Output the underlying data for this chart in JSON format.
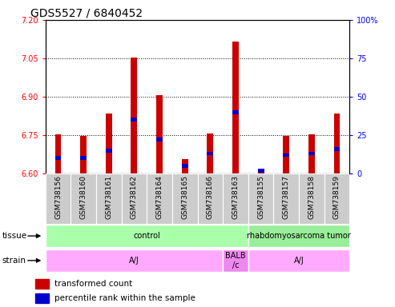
{
  "title": "GDS5527 / 6840452",
  "samples": [
    "GSM738156",
    "GSM738160",
    "GSM738161",
    "GSM738162",
    "GSM738164",
    "GSM738165",
    "GSM738166",
    "GSM738163",
    "GSM738155",
    "GSM738157",
    "GSM738158",
    "GSM738159"
  ],
  "red_values": [
    6.752,
    6.748,
    6.835,
    7.052,
    6.905,
    6.655,
    6.755,
    7.115,
    6.615,
    6.748,
    6.752,
    6.835
  ],
  "blue_values_pct": [
    10,
    10,
    15,
    35,
    22,
    5,
    13,
    40,
    2,
    12,
    13,
    16
  ],
  "ylim_left": [
    6.6,
    7.2
  ],
  "ylim_right": [
    0,
    100
  ],
  "yticks_left": [
    6.6,
    6.75,
    6.9,
    7.05,
    7.2
  ],
  "yticks_right": [
    0,
    25,
    50,
    75,
    100
  ],
  "grid_vals": [
    6.75,
    6.9,
    7.05
  ],
  "baseline": 6.6,
  "red_color": "#cc0000",
  "blue_color": "#0000cc",
  "tissue_labels": [
    "control",
    "rhabdomyosarcoma tumor"
  ],
  "tissue_colors": [
    "#aaffaa",
    "#99ee99"
  ],
  "tissue_ranges": [
    [
      0,
      8
    ],
    [
      8,
      12
    ]
  ],
  "strain_labels": [
    "A/J",
    "BALB\n/c",
    "A/J"
  ],
  "strain_colors": [
    "#ffaaff",
    "#ee88ee",
    "#ffaaff"
  ],
  "strain_ranges": [
    [
      0,
      7
    ],
    [
      7,
      8
    ],
    [
      8,
      12
    ]
  ],
  "legend_red": "transformed count",
  "legend_blue": "percentile rank within the sample",
  "sample_bg_color": "#cccccc",
  "title_fontsize": 10,
  "tick_fontsize": 7,
  "sample_fontsize": 6.5
}
